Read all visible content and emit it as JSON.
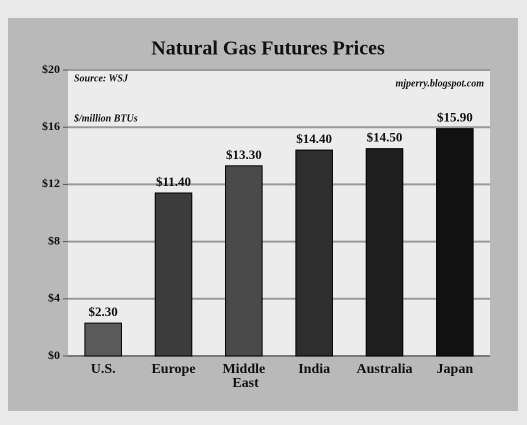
{
  "chart_data": {
    "type": "bar",
    "title": "Natural Gas Futures Prices",
    "annotations": [
      "Source: WSJ",
      "mjperry.blogspot.com",
      "$/million BTUs"
    ],
    "categories": [
      "U.S.",
      "Europe",
      "Middle East",
      "India",
      "Australia",
      "Japan"
    ],
    "values": [
      2.3,
      11.4,
      13.3,
      14.4,
      14.5,
      15.9
    ],
    "value_labels": [
      "$2.30",
      "$11.40",
      "$13.30",
      "$14.40",
      "$14.50",
      "$15.90"
    ],
    "colors": [
      "#5a5a5a",
      "#3c3c3c",
      "#4a4a4a",
      "#2e2e2e",
      "#1e1e1e",
      "#111111"
    ],
    "ylim": [
      0,
      20
    ],
    "yticks": [
      {
        "value": 0,
        "label": "$0"
      },
      {
        "value": 4,
        "label": "$4"
      },
      {
        "value": 8,
        "label": "$8"
      },
      {
        "value": 12,
        "label": "$12"
      },
      {
        "value": 16,
        "label": "$16"
      },
      {
        "value": 20,
        "label": "$20"
      }
    ],
    "grid": true
  }
}
